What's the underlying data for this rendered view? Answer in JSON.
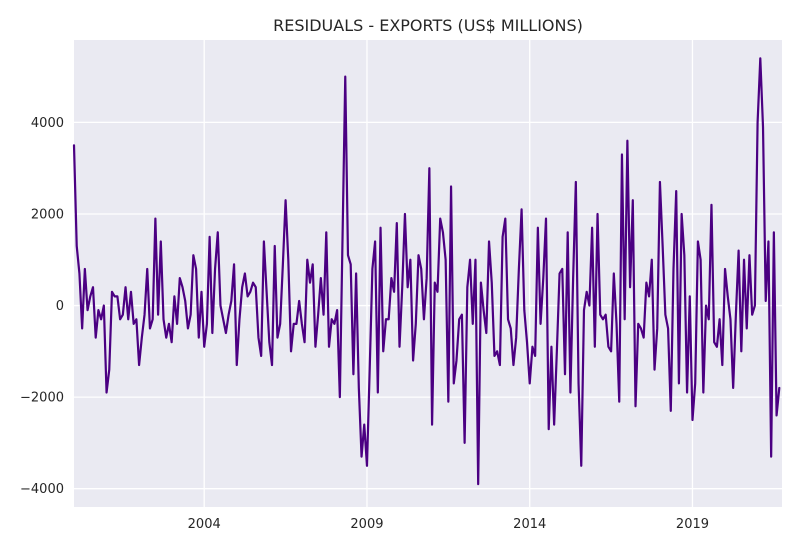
{
  "chart_data": {
    "type": "line",
    "title": "RESIDUALS - EXPORTS (US$ MILLIONS)",
    "xlabel": "",
    "ylabel": "",
    "x_start": "2000-01",
    "x_frequency": "monthly",
    "xlim": [
      2000.0,
      2021.75
    ],
    "ylim": [
      -4400,
      5800
    ],
    "x_ticks": [
      2004,
      2009,
      2014,
      2019
    ],
    "x_tick_labels": [
      "2004",
      "2009",
      "2014",
      "2019"
    ],
    "y_ticks": [
      -4000,
      -2000,
      0,
      2000,
      4000
    ],
    "y_tick_labels": [
      "−4000",
      "−2000",
      "0",
      "2000",
      "4000"
    ],
    "grid": true,
    "colors": {
      "line": "#4b0082",
      "plot_background": "#eaeaf2",
      "grid": "#ffffff"
    },
    "series": [
      {
        "values": [
          3500,
          1300,
          700,
          -500,
          800,
          -100,
          200,
          400,
          -700,
          -100,
          -300,
          0,
          -1900,
          -1400,
          300,
          200,
          200,
          -300,
          -200,
          400,
          -300,
          300,
          -400,
          -300,
          -1300,
          -700,
          -200,
          800,
          -500,
          -300,
          1900,
          -200,
          1400,
          -300,
          -700,
          -400,
          -800,
          200,
          -400,
          600,
          400,
          100,
          -500,
          -200,
          1100,
          800,
          -700,
          300,
          -900,
          -400,
          1500,
          -600,
          800,
          1600,
          0,
          -300,
          -600,
          -200,
          100,
          900,
          -1300,
          -300,
          400,
          700,
          200,
          300,
          500,
          400,
          -700,
          -1100,
          1400,
          300,
          -800,
          -1300,
          1300,
          -700,
          -400,
          900,
          2300,
          1000,
          -1000,
          -400,
          -400,
          100,
          -400,
          -800,
          1000,
          500,
          900,
          -900,
          -200,
          600,
          -200,
          1600,
          -900,
          -300,
          -400,
          -100,
          -2000,
          1500,
          5000,
          1100,
          900,
          -1500,
          700,
          -1800,
          -3300,
          -2600,
          -3500,
          -1400,
          800,
          1400,
          -1900,
          1700,
          -1000,
          -300,
          -300,
          600,
          300,
          1800,
          -900,
          400,
          2000,
          400,
          1000,
          -1200,
          -400,
          1100,
          800,
          -300,
          600,
          3000,
          -2600,
          500,
          300,
          1900,
          1600,
          1000,
          -2100,
          2600,
          -1700,
          -1200,
          -300,
          -200,
          -3000,
          400,
          1000,
          -400,
          1000,
          -3900,
          500,
          -100,
          -600,
          1400,
          500,
          -1100,
          -1000,
          -1300,
          1500,
          1900,
          -300,
          -500,
          -1300,
          -700,
          800,
          2100,
          -100,
          -800,
          -1700,
          -900,
          -1100,
          1700,
          -400,
          600,
          1900,
          -2700,
          -900,
          -2600,
          -1000,
          700,
          800,
          -1500,
          1600,
          -1900,
          600,
          2700,
          -1700,
          -3500,
          -100,
          300,
          0,
          1700,
          -900,
          2000,
          -200,
          -300,
          -200,
          -900,
          -1000,
          700,
          -400,
          -2100,
          3300,
          -300,
          3600,
          400,
          2300,
          -2200,
          -400,
          -500,
          -700,
          500,
          200,
          1000,
          -1400,
          -500,
          2700,
          1300,
          -200,
          -500,
          -2300,
          800,
          2500,
          -1700,
          2000,
          1100,
          -1900,
          200,
          -2500,
          -1700,
          1400,
          1000,
          -1900,
          0,
          -300,
          2200,
          -800,
          -900,
          -300,
          -1300,
          800,
          200,
          -300,
          -1800,
          -200,
          1200,
          -1000,
          1000,
          -500,
          1100,
          -200,
          0,
          4000,
          5400,
          3900,
          100,
          1400,
          -3300,
          1600,
          -2400,
          -1800
        ]
      }
    ]
  }
}
